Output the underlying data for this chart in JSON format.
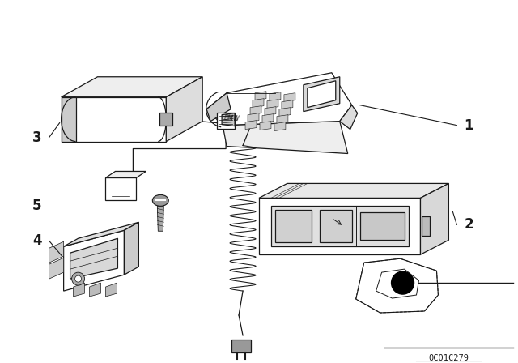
{
  "background_color": "#ffffff",
  "line_color": "#1a1a1a",
  "figsize": [
    6.4,
    4.48
  ],
  "dpi": 100,
  "part_number_text": "0C01C279",
  "label_fontsize": 12,
  "label_fontweight": "bold"
}
